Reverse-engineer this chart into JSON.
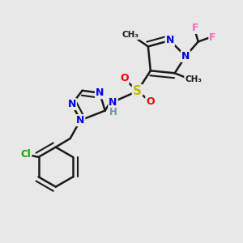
{
  "bg_color": "#e8e8e8",
  "bond_color": "#1a1a1a",
  "bond_width": 1.8,
  "N_blue": "#0000ee",
  "O_red": "#ff0000",
  "S_yellow": "#bbbb00",
  "Cl_green": "#00aa00",
  "F_pink": "#ff69b4",
  "H_teal": "#669999",
  "C_black": "#1a1a1a",
  "figsize": [
    3.0,
    3.0
  ],
  "dpi": 100,
  "xlim": [
    0,
    10
  ],
  "ylim": [
    0,
    10
  ]
}
